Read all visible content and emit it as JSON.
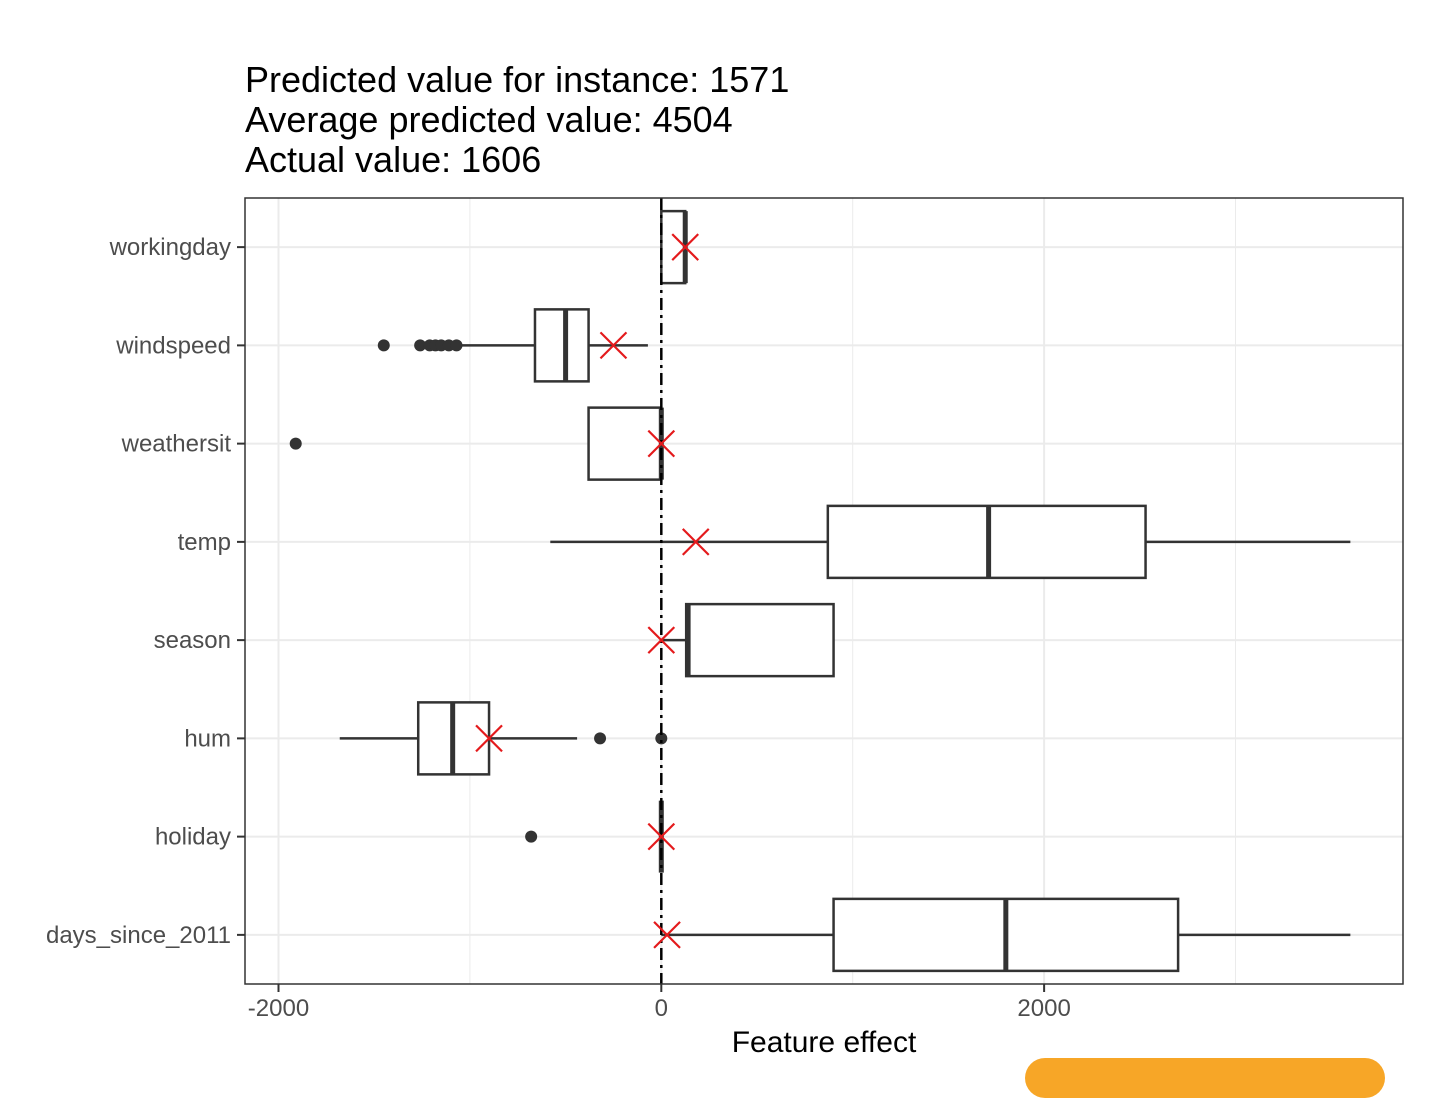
{
  "header": {
    "line1": "Predicted value for instance: 1571",
    "line2": "Average predicted value: 4504",
    "line3": "Actual value: 1606"
  },
  "chart_data": {
    "type": "boxplot",
    "title": "Predicted value for instance: 1571\nAverage predicted value: 4504\nActual value: 1606",
    "xlabel": "Feature effect",
    "ylabel": "",
    "xlim": [
      -2175,
      3875
    ],
    "x_ticks": [
      -2000,
      0,
      2000
    ],
    "x_tick_labels": [
      "-2000",
      "0",
      "2000"
    ],
    "reference_line_x": 0,
    "grid": true,
    "colors": {
      "box_line": "#333333",
      "instance_marker": "#e41a1c",
      "grid": "#ebebeb"
    },
    "features": [
      {
        "name": "workingday",
        "whisker_low": 0,
        "q1": 0,
        "median": 125,
        "q3": 125,
        "whisker_high": 125,
        "outliers": [],
        "instance_effect": 125
      },
      {
        "name": "windspeed",
        "whisker_low": -1060,
        "q1": -660,
        "median": -500,
        "q3": -380,
        "whisker_high": -70,
        "outliers": [
          -1450,
          -1260,
          -1210,
          -1180,
          -1150,
          -1110,
          -1070
        ],
        "instance_effect": -250
      },
      {
        "name": "weathersit",
        "whisker_low": -380,
        "q1": -380,
        "median": 0,
        "q3": 0,
        "whisker_high": 0,
        "outliers": [
          -1910
        ],
        "instance_effect": 0
      },
      {
        "name": "temp",
        "whisker_low": -580,
        "q1": 870,
        "median": 1710,
        "q3": 2530,
        "whisker_high": 3600,
        "outliers": [],
        "instance_effect": 180
      },
      {
        "name": "season",
        "whisker_low": 0,
        "q1": 130,
        "median": 140,
        "q3": 900,
        "whisker_high": 900,
        "outliers": [],
        "instance_effect": 0
      },
      {
        "name": "hum",
        "whisker_low": -1680,
        "q1": -1270,
        "median": -1090,
        "q3": -900,
        "whisker_high": -440,
        "outliers": [
          -320,
          0
        ],
        "instance_effect": -900
      },
      {
        "name": "holiday",
        "whisker_low": 0,
        "q1": 0,
        "median": 0,
        "q3": 0,
        "whisker_high": 0,
        "outliers": [
          -680
        ],
        "instance_effect": 0
      },
      {
        "name": "days_since_2011",
        "whisker_low": 0,
        "q1": 900,
        "median": 1800,
        "q3": 2700,
        "whisker_high": 3600,
        "outliers": [],
        "instance_effect": 30
      }
    ]
  }
}
